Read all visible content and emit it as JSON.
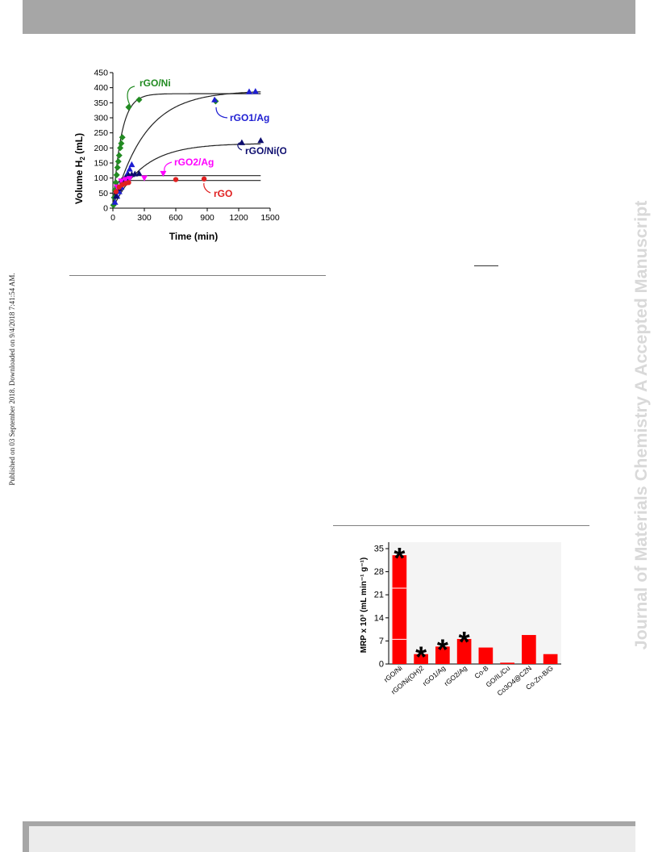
{
  "side_text": {
    "published": "Published on 03 September 2018. Downloaded on 9/4/2018 7:41:54 AM.",
    "journal": "Journal of Materials Chemistry A Accepted Manuscript"
  },
  "colors": {
    "header_bar": "#a6a6a6",
    "watermark": "#d9d9d9",
    "bar_red": "#ff0000"
  },
  "chart_data": [
    {
      "type": "scatter",
      "xlabel": "Time (min)",
      "ylabel_main": "Volume H",
      "ylabel_sub": "2",
      "ylabel_tail": " (mL)",
      "xlim": [
        0,
        1500
      ],
      "ylim": [
        0,
        450
      ],
      "xticks": [
        0,
        300,
        600,
        900,
        1200,
        1500
      ],
      "yticks": [
        0,
        50,
        100,
        150,
        200,
        250,
        300,
        350,
        400,
        450
      ],
      "series": [
        {
          "name": "rGO/Ni",
          "name_main": "rGO/Ni",
          "name_sub": "",
          "color": "#228b22",
          "marker": "diamond",
          "points": [
            [
              5,
              10
            ],
            [
              12,
              35
            ],
            [
              20,
              60
            ],
            [
              28,
              85
            ],
            [
              36,
              110
            ],
            [
              44,
              135
            ],
            [
              52,
              155
            ],
            [
              60,
              175
            ],
            [
              70,
              200
            ],
            [
              80,
              215
            ],
            [
              90,
              235
            ],
            [
              150,
              335
            ],
            [
              250,
              360
            ],
            [
              980,
              355
            ]
          ],
          "fit": {
            "a": 380,
            "k": 0.0125
          }
        },
        {
          "name": "rGO1/Ag",
          "name_main": "rGO1/Ag",
          "name_sub": "",
          "color": "#1e1ed2",
          "marker": "triangle-up",
          "points": [
            [
              20,
              20
            ],
            [
              40,
              40
            ],
            [
              60,
              55
            ],
            [
              80,
              70
            ],
            [
              100,
              85
            ],
            [
              120,
              100
            ],
            [
              140,
              115
            ],
            [
              160,
              130
            ],
            [
              180,
              145
            ],
            [
              970,
              360
            ],
            [
              1300,
              387
            ],
            [
              1360,
              388
            ]
          ],
          "fit": {
            "a": 390,
            "k": 0.0033
          }
        },
        {
          "name": "rGO/Ni(OH)2",
          "name_main": "rGO/Ni(OH)",
          "name_sub": "2",
          "color": "#0c0c6e",
          "marker": "triangle-up",
          "points": [
            [
              30,
              40
            ],
            [
              60,
              65
            ],
            [
              90,
              90
            ],
            [
              120,
              102
            ],
            [
              150,
              110
            ],
            [
              180,
              112
            ],
            [
              210,
              114
            ],
            [
              250,
              116
            ],
            [
              1230,
              218
            ],
            [
              1410,
              225
            ]
          ],
          "fit": {
            "a": 215,
            "k": 0.0035
          }
        },
        {
          "name": "rGO2/Ag",
          "name_main": "rGO2/Ag",
          "name_sub": "",
          "color": "#ff00ff",
          "marker": "triangle-down",
          "points": [
            [
              40,
              70
            ],
            [
              80,
              90
            ],
            [
              120,
              95
            ],
            [
              160,
              98
            ],
            [
              300,
              100
            ],
            [
              480,
              115
            ]
          ],
          "fit": {
            "a": 108,
            "k": 0.03
          }
        },
        {
          "name": "rGO",
          "name_main": "rGO",
          "name_sub": "",
          "color": "#e02020",
          "marker": "circle",
          "points": [
            [
              30,
              55
            ],
            [
              60,
              70
            ],
            [
              90,
              78
            ],
            [
              120,
              82
            ],
            [
              150,
              85
            ],
            [
              600,
              95
            ],
            [
              870,
              97
            ]
          ],
          "fit": {
            "a": 92,
            "k": 0.05
          }
        }
      ]
    },
    {
      "type": "bar",
      "ylabel": "MRP x 10³ (mL min⁻¹ g⁻¹)",
      "ylim": [
        0,
        35
      ],
      "yticks": [
        0,
        7,
        14,
        21,
        28,
        35
      ],
      "categories": [
        "rGO/Ni",
        "rGO/Ni(OH)2",
        "rGO1/Ag",
        "rGO2/Ag",
        "Co-B",
        "GO/IL/Cu",
        "Co3O4@C2N",
        "Co-Zn-B/G"
      ],
      "values": [
        33,
        3,
        5.3,
        7.6,
        5.0,
        0.4,
        8.8,
        3.0
      ],
      "starred": [
        true,
        true,
        true,
        true,
        false,
        false,
        false,
        false
      ],
      "star_symbol": "*",
      "color": "#ff0000"
    }
  ]
}
